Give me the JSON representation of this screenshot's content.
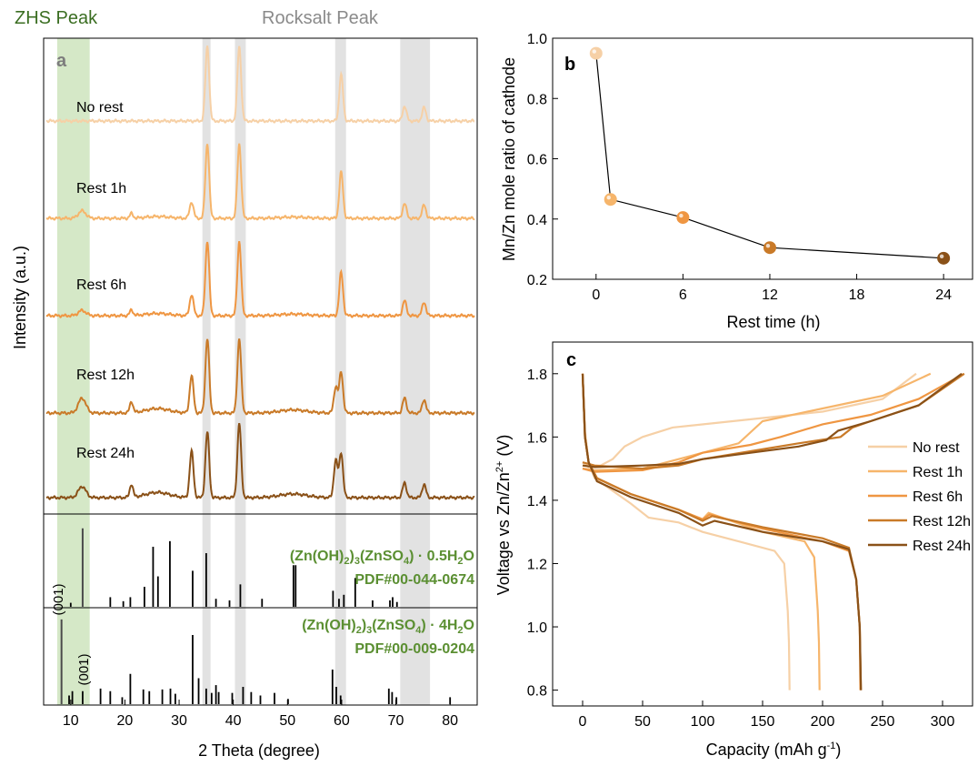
{
  "chart_data": [
    {
      "panel": "a",
      "type": "line",
      "xlabel": "2 Theta (degree)",
      "ylabel": "Intensity (a.u.)",
      "xlim": [
        5,
        85
      ],
      "xticks": [
        10,
        20,
        30,
        40,
        50,
        60,
        70,
        80
      ],
      "band_labels": {
        "zhs": "ZHS Peak",
        "rocksalt": "Rocksalt Peak"
      },
      "zhs_band": [
        7.5,
        13.5
      ],
      "rocksalt_bands": [
        [
          34.3,
          35.8
        ],
        [
          40.3,
          42.3
        ],
        [
          58.8,
          60.8
        ],
        [
          70.8,
          76.3
        ]
      ],
      "colors": {
        "zhs_text": "#3b6e22",
        "zhs_band": "#d5e8c7",
        "rocksalt_text": "#8a8a8a",
        "rocksalt_band": "#e2e2e2"
      },
      "series": [
        {
          "name": "No rest",
          "color": "#f6d0a6",
          "zhs": 0,
          "sat": 0,
          "peaks": [
            [
              35.2,
              1.0
            ],
            [
              41.1,
              1.0
            ],
            [
              59.9,
              0.62
            ],
            [
              71.6,
              0.2
            ],
            [
              75.2,
              0.18
            ]
          ]
        },
        {
          "name": "Rest 1h",
          "color": "#f6b56b",
          "zhs": 0.1,
          "sat": 0.25,
          "peaks": [
            [
              32.3,
              0.22
            ],
            [
              35.2,
              1.0
            ],
            [
              41.1,
              1.0
            ],
            [
              59.9,
              0.62
            ],
            [
              71.6,
              0.2
            ],
            [
              75.2,
              0.18
            ]
          ]
        },
        {
          "name": "Rest 6h",
          "color": "#ef9642",
          "zhs": 0.07,
          "sat": 0.3,
          "peaks": [
            [
              32.3,
              0.28
            ],
            [
              35.2,
              1.0
            ],
            [
              41.1,
              1.0
            ],
            [
              59.9,
              0.58
            ],
            [
              71.6,
              0.2
            ],
            [
              75.2,
              0.18
            ]
          ]
        },
        {
          "name": "Rest 12h",
          "color": "#c97a28",
          "zhs": 0.2,
          "sat": 0.6,
          "peaks": [
            [
              32.3,
              0.5
            ],
            [
              35.2,
              1.0
            ],
            [
              41.1,
              1.0
            ],
            [
              58.9,
              0.35
            ],
            [
              59.9,
              0.55
            ],
            [
              71.6,
              0.2
            ],
            [
              75.2,
              0.18
            ]
          ]
        },
        {
          "name": "Rest 24h",
          "color": "#8a5118",
          "zhs": 0.15,
          "sat": 0.7,
          "peaks": [
            [
              32.3,
              0.62
            ],
            [
              35.2,
              0.88
            ],
            [
              41.1,
              1.0
            ],
            [
              58.9,
              0.5
            ],
            [
              59.9,
              0.6
            ],
            [
              71.6,
              0.2
            ],
            [
              75.2,
              0.18
            ]
          ]
        }
      ],
      "references": [
        {
          "formula": [
            "(Zn(OH)",
            "2",
            ")",
            "3",
            "(ZnSO",
            "4",
            ") · 0.5H",
            "2",
            "O"
          ],
          "pdf": "PDF#00-044-0674",
          "miller": "(001)",
          "highlight": [
            12.2,
            0.98
          ],
          "sticks": [
            [
              10.0,
              0.05
            ],
            [
              17.3,
              0.12
            ],
            [
              19.7,
              0.07
            ],
            [
              21.0,
              0.12
            ],
            [
              23.6,
              0.25
            ],
            [
              25.2,
              0.75
            ],
            [
              26.1,
              0.38
            ],
            [
              28.3,
              0.82
            ],
            [
              32.5,
              0.45
            ],
            [
              35.0,
              0.67
            ],
            [
              36.8,
              0.1
            ],
            [
              39.3,
              0.08
            ],
            [
              41.3,
              0.28
            ],
            [
              45.3,
              0.1
            ],
            [
              51.1,
              0.52
            ],
            [
              51.5,
              0.52
            ],
            [
              58.4,
              0.2
            ],
            [
              59.5,
              0.1
            ],
            [
              60.4,
              0.15
            ],
            [
              62.5,
              0.36
            ],
            [
              65.7,
              0.08
            ],
            [
              68.9,
              0.08
            ],
            [
              69.4,
              0.12
            ],
            [
              70.2,
              0.06
            ]
          ]
        },
        {
          "formula": [
            "(Zn(OH)",
            "2",
            ")",
            "3",
            "(ZnSO",
            "4",
            ") · 4H",
            "2",
            "O"
          ],
          "pdf": "PDF#00-009-0204",
          "miller": "(001)",
          "highlight": [
            8.3,
            0.98
          ],
          "sticks": [
            [
              9.7,
              0.1
            ],
            [
              10.3,
              0.15
            ],
            [
              12.2,
              0.15
            ],
            [
              15.5,
              0.18
            ],
            [
              17.3,
              0.15
            ],
            [
              19.5,
              0.08
            ],
            [
              21.0,
              0.35
            ],
            [
              23.4,
              0.17
            ],
            [
              24.5,
              0.15
            ],
            [
              26.9,
              0.17
            ],
            [
              28.4,
              0.18
            ],
            [
              29.3,
              0.12
            ],
            [
              32.5,
              0.8
            ],
            [
              33.6,
              0.3
            ],
            [
              35.0,
              0.18
            ],
            [
              36.0,
              0.13
            ],
            [
              36.8,
              0.22
            ],
            [
              37.3,
              0.14
            ],
            [
              39.8,
              0.13
            ],
            [
              41.8,
              0.2
            ],
            [
              43.3,
              0.14
            ],
            [
              45.0,
              0.1
            ],
            [
              47.6,
              0.13
            ],
            [
              50.1,
              0.06
            ],
            [
              58.3,
              0.4
            ],
            [
              59.0,
              0.2
            ],
            [
              59.8,
              0.1
            ],
            [
              68.7,
              0.18
            ],
            [
              69.3,
              0.14
            ],
            [
              70.1,
              0.08
            ],
            [
              80.0,
              0.08
            ]
          ]
        }
      ]
    },
    {
      "panel": "b",
      "type": "scatter",
      "xlabel": "Rest time (h)",
      "ylabel": "Mn/Zn mole ratio of cathode",
      "xlim": [
        -3,
        26
      ],
      "ylim": [
        0.2,
        1.0
      ],
      "xticks": [
        0,
        6,
        12,
        18,
        24
      ],
      "yticks": [
        0.2,
        0.4,
        0.6,
        0.8,
        1.0
      ],
      "points": [
        {
          "x": 0,
          "y": 0.95,
          "color": "#f6d0a6"
        },
        {
          "x": 1,
          "y": 0.465,
          "color": "#f6b56b"
        },
        {
          "x": 6,
          "y": 0.405,
          "color": "#ef9642"
        },
        {
          "x": 12,
          "y": 0.305,
          "color": "#c97a28"
        },
        {
          "x": 24,
          "y": 0.27,
          "color": "#8a5118"
        }
      ]
    },
    {
      "panel": "c",
      "type": "line",
      "xlabel": "Capacity (mAh g",
      "xlabel_sup": "-1",
      "xlabel_end": ")",
      "ylabel": "Voltage vs Zn/Zn",
      "ylabel_sup": "2+",
      "ylabel_end": " (V)",
      "xlim": [
        -25,
        325
      ],
      "ylim": [
        0.75,
        1.9
      ],
      "xticks": [
        0,
        50,
        100,
        150,
        200,
        250,
        300
      ],
      "yticks": [
        0.8,
        1.0,
        1.2,
        1.4,
        1.6,
        1.8
      ],
      "series": [
        {
          "name": "No rest",
          "color": "#f6d0a6",
          "discharge": [
            [
              0,
              1.8
            ],
            [
              2,
              1.62
            ],
            [
              5,
              1.52
            ],
            [
              10,
              1.47
            ],
            [
              25,
              1.43
            ],
            [
              40,
              1.39
            ],
            [
              55,
              1.345
            ],
            [
              80,
              1.33
            ],
            [
              100,
              1.3
            ],
            [
              130,
              1.27
            ],
            [
              160,
              1.24
            ],
            [
              168,
              1.2
            ],
            [
              171,
              1.05
            ],
            [
              172,
              0.95
            ],
            [
              172.5,
              0.8
            ]
          ],
          "charge": [
            [
              0,
              1.52
            ],
            [
              5,
              1.505
            ],
            [
              15,
              1.51
            ],
            [
              25,
              1.53
            ],
            [
              35,
              1.57
            ],
            [
              50,
              1.6
            ],
            [
              75,
              1.63
            ],
            [
              150,
              1.66
            ],
            [
              200,
              1.68
            ],
            [
              250,
              1.72
            ],
            [
              278,
              1.8
            ]
          ]
        },
        {
          "name": "Rest 1h",
          "color": "#f6b56b",
          "discharge": [
            [
              0,
              1.8
            ],
            [
              2,
              1.6
            ],
            [
              5,
              1.52
            ],
            [
              12,
              1.47
            ],
            [
              40,
              1.42
            ],
            [
              80,
              1.37
            ],
            [
              100,
              1.34
            ],
            [
              105,
              1.36
            ],
            [
              150,
              1.3
            ],
            [
              185,
              1.27
            ],
            [
              193,
              1.22
            ],
            [
              196,
              1.05
            ],
            [
              197,
              0.95
            ],
            [
              197.5,
              0.8
            ]
          ],
          "charge": [
            [
              0,
              1.5
            ],
            [
              10,
              1.495
            ],
            [
              50,
              1.5
            ],
            [
              80,
              1.53
            ],
            [
              100,
              1.55
            ],
            [
              130,
              1.58
            ],
            [
              150,
              1.65
            ],
            [
              200,
              1.69
            ],
            [
              250,
              1.73
            ],
            [
              290,
              1.8
            ]
          ]
        },
        {
          "name": "Rest 6h",
          "color": "#ef9642",
          "discharge": [
            [
              0,
              1.8
            ],
            [
              2,
              1.6
            ],
            [
              5,
              1.52
            ],
            [
              12,
              1.47
            ],
            [
              40,
              1.42
            ],
            [
              80,
              1.37
            ],
            [
              100,
              1.34
            ],
            [
              106,
              1.355
            ],
            [
              150,
              1.31
            ],
            [
              200,
              1.27
            ],
            [
              222,
              1.24
            ],
            [
              228,
              1.15
            ],
            [
              231,
              1.0
            ],
            [
              231.5,
              0.8
            ]
          ],
          "charge": [
            [
              0,
              1.5
            ],
            [
              10,
              1.49
            ],
            [
              50,
              1.495
            ],
            [
              80,
              1.52
            ],
            [
              100,
              1.55
            ],
            [
              140,
              1.575
            ],
            [
              165,
              1.6
            ],
            [
              200,
              1.64
            ],
            [
              240,
              1.67
            ],
            [
              280,
              1.72
            ],
            [
              318,
              1.8
            ]
          ]
        },
        {
          "name": "Rest 12h",
          "color": "#c97a28",
          "discharge": [
            [
              0,
              1.8
            ],
            [
              2,
              1.6
            ],
            [
              5,
              1.52
            ],
            [
              12,
              1.47
            ],
            [
              40,
              1.42
            ],
            [
              80,
              1.37
            ],
            [
              100,
              1.335
            ],
            [
              108,
              1.35
            ],
            [
              150,
              1.315
            ],
            [
              200,
              1.28
            ],
            [
              222,
              1.25
            ],
            [
              228,
              1.15
            ],
            [
              231,
              1.0
            ],
            [
              232,
              0.8
            ]
          ],
          "charge": [
            [
              0,
              1.52
            ],
            [
              10,
              1.51
            ],
            [
              50,
              1.5
            ],
            [
              80,
              1.51
            ],
            [
              100,
              1.53
            ],
            [
              140,
              1.555
            ],
            [
              180,
              1.58
            ],
            [
              215,
              1.6
            ],
            [
              225,
              1.63
            ],
            [
              240,
              1.65
            ],
            [
              280,
              1.7
            ],
            [
              318,
              1.8
            ]
          ]
        },
        {
          "name": "Rest 24h",
          "color": "#8a5118",
          "discharge": [
            [
              0,
              1.8
            ],
            [
              2,
              1.6
            ],
            [
              5,
              1.52
            ],
            [
              12,
              1.46
            ],
            [
              40,
              1.41
            ],
            [
              80,
              1.36
            ],
            [
              100,
              1.32
            ],
            [
              110,
              1.335
            ],
            [
              150,
              1.3
            ],
            [
              200,
              1.27
            ],
            [
              222,
              1.245
            ],
            [
              228,
              1.15
            ],
            [
              231,
              1.0
            ],
            [
              232,
              0.8
            ]
          ],
          "charge": [
            [
              0,
              1.51
            ],
            [
              10,
              1.505
            ],
            [
              50,
              1.51
            ],
            [
              80,
              1.515
            ],
            [
              100,
              1.53
            ],
            [
              140,
              1.55
            ],
            [
              180,
              1.57
            ],
            [
              203,
              1.59
            ],
            [
              213,
              1.62
            ],
            [
              240,
              1.65
            ],
            [
              280,
              1.7
            ],
            [
              316,
              1.8
            ]
          ]
        }
      ]
    }
  ],
  "panel_labels": {
    "a": "a",
    "b": "b",
    "c": "c"
  }
}
